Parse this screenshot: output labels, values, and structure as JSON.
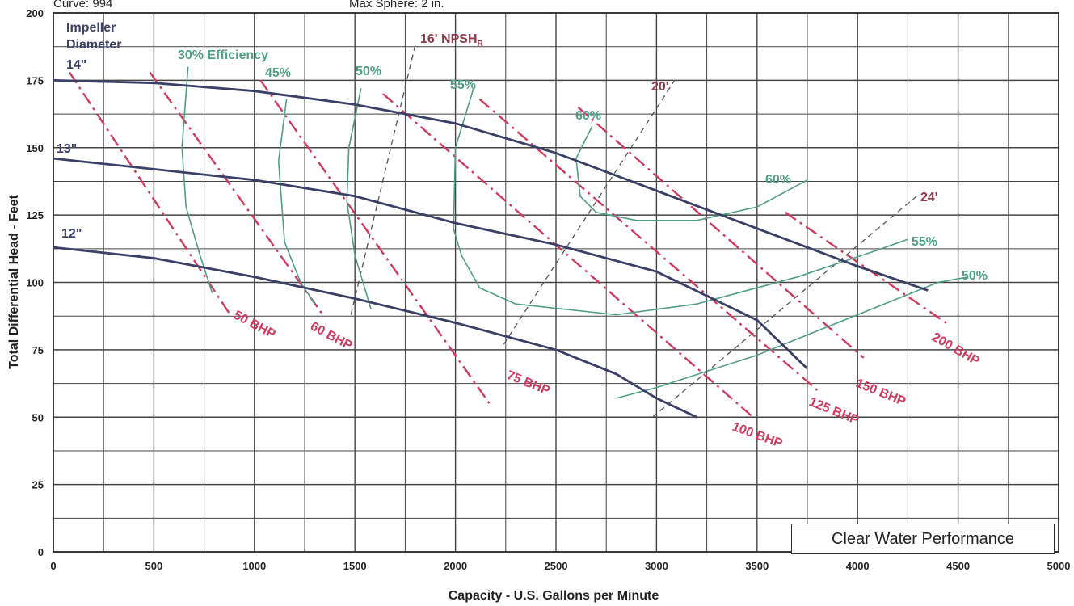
{
  "header": {
    "curve": "Curve: 994",
    "sphere": "Max Sphere: 2 in."
  },
  "chart_data": {
    "type": "line",
    "title": "",
    "xlabel": "Capacity - U.S. Gallons per Minute",
    "ylabel": "Total Differential Head - Feet",
    "xlim": [
      0,
      5000
    ],
    "ylim": [
      0,
      200
    ],
    "x_ticks": [
      0,
      500,
      1000,
      1500,
      2000,
      2500,
      3000,
      3500,
      4000,
      4500,
      5000
    ],
    "y_ticks": [
      0,
      25,
      50,
      75,
      100,
      125,
      150,
      175,
      200
    ],
    "grid": true,
    "impeller_heading": [
      "Impeller",
      "Diameter"
    ],
    "impeller_curves": [
      {
        "name": "14\"",
        "points": [
          [
            0,
            175
          ],
          [
            500,
            174
          ],
          [
            1000,
            171
          ],
          [
            1500,
            166
          ],
          [
            2000,
            159
          ],
          [
            2500,
            148
          ],
          [
            3000,
            134
          ],
          [
            3500,
            120
          ],
          [
            4000,
            106
          ],
          [
            4350,
            97
          ]
        ]
      },
      {
        "name": "13\"",
        "points": [
          [
            0,
            146
          ],
          [
            500,
            142
          ],
          [
            1000,
            138
          ],
          [
            1500,
            132
          ],
          [
            2000,
            122
          ],
          [
            2500,
            114
          ],
          [
            3000,
            104
          ],
          [
            3500,
            86
          ],
          [
            3750,
            68
          ]
        ]
      },
      {
        "name": "12\"",
        "points": [
          [
            0,
            113
          ],
          [
            500,
            109
          ],
          [
            1000,
            102
          ],
          [
            1500,
            94
          ],
          [
            2000,
            85
          ],
          [
            2500,
            75
          ],
          [
            2800,
            66
          ],
          [
            3000,
            57
          ],
          [
            3200,
            50
          ]
        ]
      }
    ],
    "efficiency_curves": [
      {
        "name": "30% Efficiency",
        "points": [
          [
            670,
            180
          ],
          [
            640,
            150
          ],
          [
            660,
            128
          ],
          [
            730,
            110
          ],
          [
            790,
            96
          ]
        ]
      },
      {
        "name": "45%",
        "points": [
          [
            1160,
            168
          ],
          [
            1120,
            145
          ],
          [
            1150,
            115
          ],
          [
            1230,
            100
          ],
          [
            1300,
            92
          ]
        ]
      },
      {
        "name": "50%",
        "points": [
          [
            1530,
            172
          ],
          [
            1470,
            150
          ],
          [
            1460,
            130
          ],
          [
            1500,
            110
          ],
          [
            1580,
            90
          ]
        ]
      },
      {
        "name": "55%",
        "points": [
          [
            2090,
            172
          ],
          [
            2000,
            150
          ],
          [
            1990,
            120
          ],
          [
            2030,
            110
          ],
          [
            2120,
            98
          ],
          [
            2300,
            92
          ],
          [
            2800,
            88
          ],
          [
            3200,
            92
          ],
          [
            3700,
            102
          ],
          [
            4100,
            112
          ],
          [
            4250,
            116
          ]
        ]
      },
      {
        "name": "60%",
        "points": [
          [
            2680,
            158
          ],
          [
            2600,
            146
          ],
          [
            2620,
            132
          ],
          [
            2700,
            126
          ],
          [
            2900,
            123
          ],
          [
            3200,
            123
          ],
          [
            3500,
            128
          ],
          [
            3750,
            138
          ]
        ]
      },
      {
        "name": "50%",
        "points": [
          [
            2800,
            57
          ],
          [
            3000,
            61
          ],
          [
            3500,
            73
          ],
          [
            4000,
            88
          ],
          [
            4400,
            100
          ],
          [
            4550,
            102
          ]
        ]
      }
    ],
    "bhp_lines": [
      {
        "name": "50 BHP",
        "points": [
          [
            80,
            178
          ],
          [
            880,
            88
          ]
        ]
      },
      {
        "name": "60 BHP",
        "points": [
          [
            480,
            178
          ],
          [
            1340,
            88
          ]
        ]
      },
      {
        "name": "75 BHP",
        "points": [
          [
            1030,
            175
          ],
          [
            2170,
            55
          ]
        ]
      },
      {
        "name": "100 BHP",
        "points": [
          [
            1640,
            170
          ],
          [
            3480,
            50
          ]
        ]
      },
      {
        "name": "125 BHP",
        "points": [
          [
            2120,
            168
          ],
          [
            3800,
            60
          ]
        ]
      },
      {
        "name": "150 BHP",
        "points": [
          [
            2610,
            165
          ],
          [
            4030,
            72
          ]
        ]
      },
      {
        "name": "200 BHP",
        "points": [
          [
            3640,
            126
          ],
          [
            4460,
            84
          ]
        ]
      }
    ],
    "npsh_lines": [
      {
        "name": "16' NPSH",
        "subscript": "R",
        "points": [
          [
            1480,
            88
          ],
          [
            1800,
            188
          ]
        ]
      },
      {
        "name": "20'",
        "points": [
          [
            2240,
            77
          ],
          [
            3090,
            175
          ]
        ]
      },
      {
        "name": "24'",
        "points": [
          [
            2980,
            50
          ],
          [
            4310,
            133
          ]
        ]
      }
    ],
    "annotation": "Clear Water Performance"
  }
}
